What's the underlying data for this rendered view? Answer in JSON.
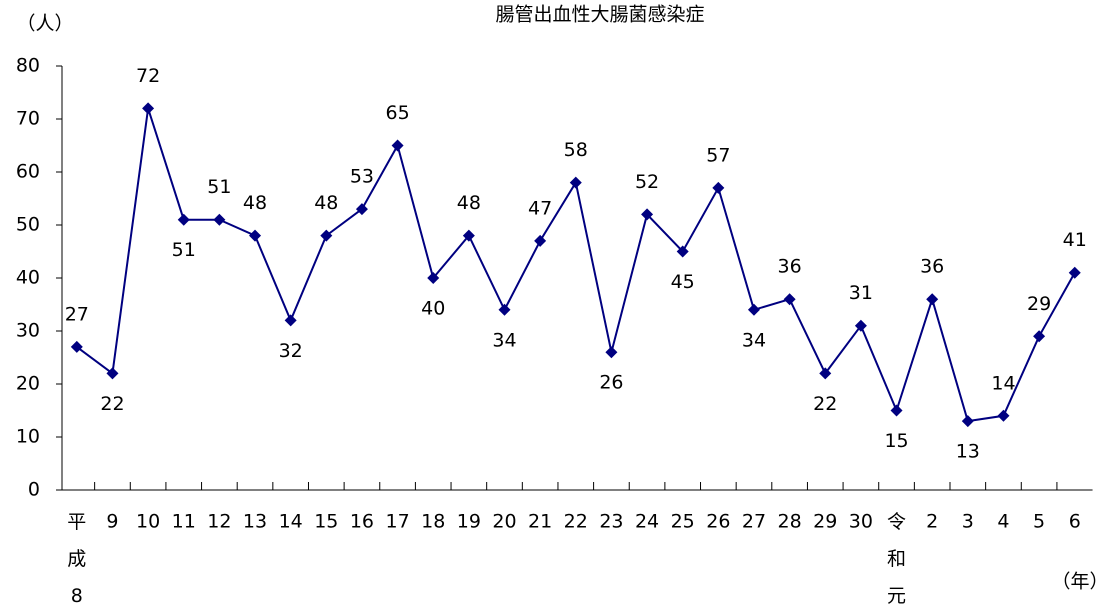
{
  "chart_data": {
    "type": "line",
    "title": "腸管出血性大腸菌感染症",
    "y_label": "（人）",
    "x_label": "（年）",
    "categories": [
      "平成8",
      "9",
      "10",
      "11",
      "12",
      "13",
      "14",
      "15",
      "16",
      "17",
      "18",
      "19",
      "20",
      "21",
      "22",
      "23",
      "24",
      "25",
      "26",
      "27",
      "28",
      "29",
      "30",
      "令和元",
      "2",
      "3",
      "4",
      "5",
      "6"
    ],
    "series": [
      {
        "name": "腸管出血性大腸菌感染症",
        "color": "#000080",
        "values": [
          27,
          22,
          72,
          51,
          51,
          48,
          32,
          48,
          53,
          65,
          40,
          48,
          34,
          47,
          58,
          26,
          52,
          45,
          57,
          34,
          36,
          22,
          31,
          15,
          36,
          13,
          14,
          29,
          41
        ]
      }
    ],
    "ylim": [
      0,
      80
    ],
    "yticks": [
      0,
      10,
      20,
      30,
      40,
      50,
      60,
      70,
      80
    ],
    "grid": false
  }
}
